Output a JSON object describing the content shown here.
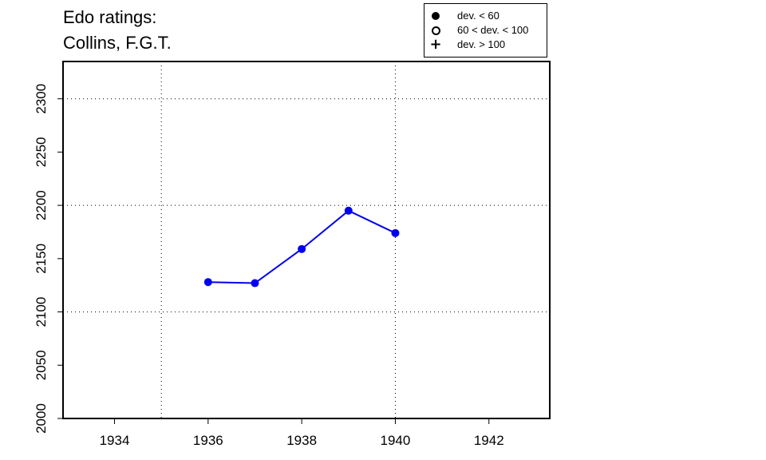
{
  "chart_data": {
    "type": "line",
    "title": [
      "Edo ratings:",
      "Collins, F.G.T."
    ],
    "xlabel": "",
    "ylabel": "",
    "xlim": [
      1932.9,
      1943.3
    ],
    "ylim": [
      2000,
      2335
    ],
    "x_ticks": [
      1934,
      1936,
      1938,
      1940,
      1942
    ],
    "y_ticks": [
      2000,
      2050,
      2100,
      2150,
      2200,
      2250,
      2300
    ],
    "x_grid": [
      1935,
      1940
    ],
    "y_grid": [
      2100,
      2200,
      2300
    ],
    "grid": true,
    "series": [
      {
        "color": "#0000ee",
        "marker": "filled-circle",
        "x": [
          1936,
          1937,
          1938,
          1939,
          1940
        ],
        "y": [
          2128,
          2127,
          2159,
          2195,
          2174
        ]
      }
    ],
    "legend": {
      "placement": "top-right",
      "entries": [
        {
          "symbol": "filled-circle",
          "label": "dev. < 60"
        },
        {
          "symbol": "open-circle",
          "label": "60 < dev. < 100"
        },
        {
          "symbol": "plus",
          "label": "dev. > 100"
        }
      ]
    }
  }
}
